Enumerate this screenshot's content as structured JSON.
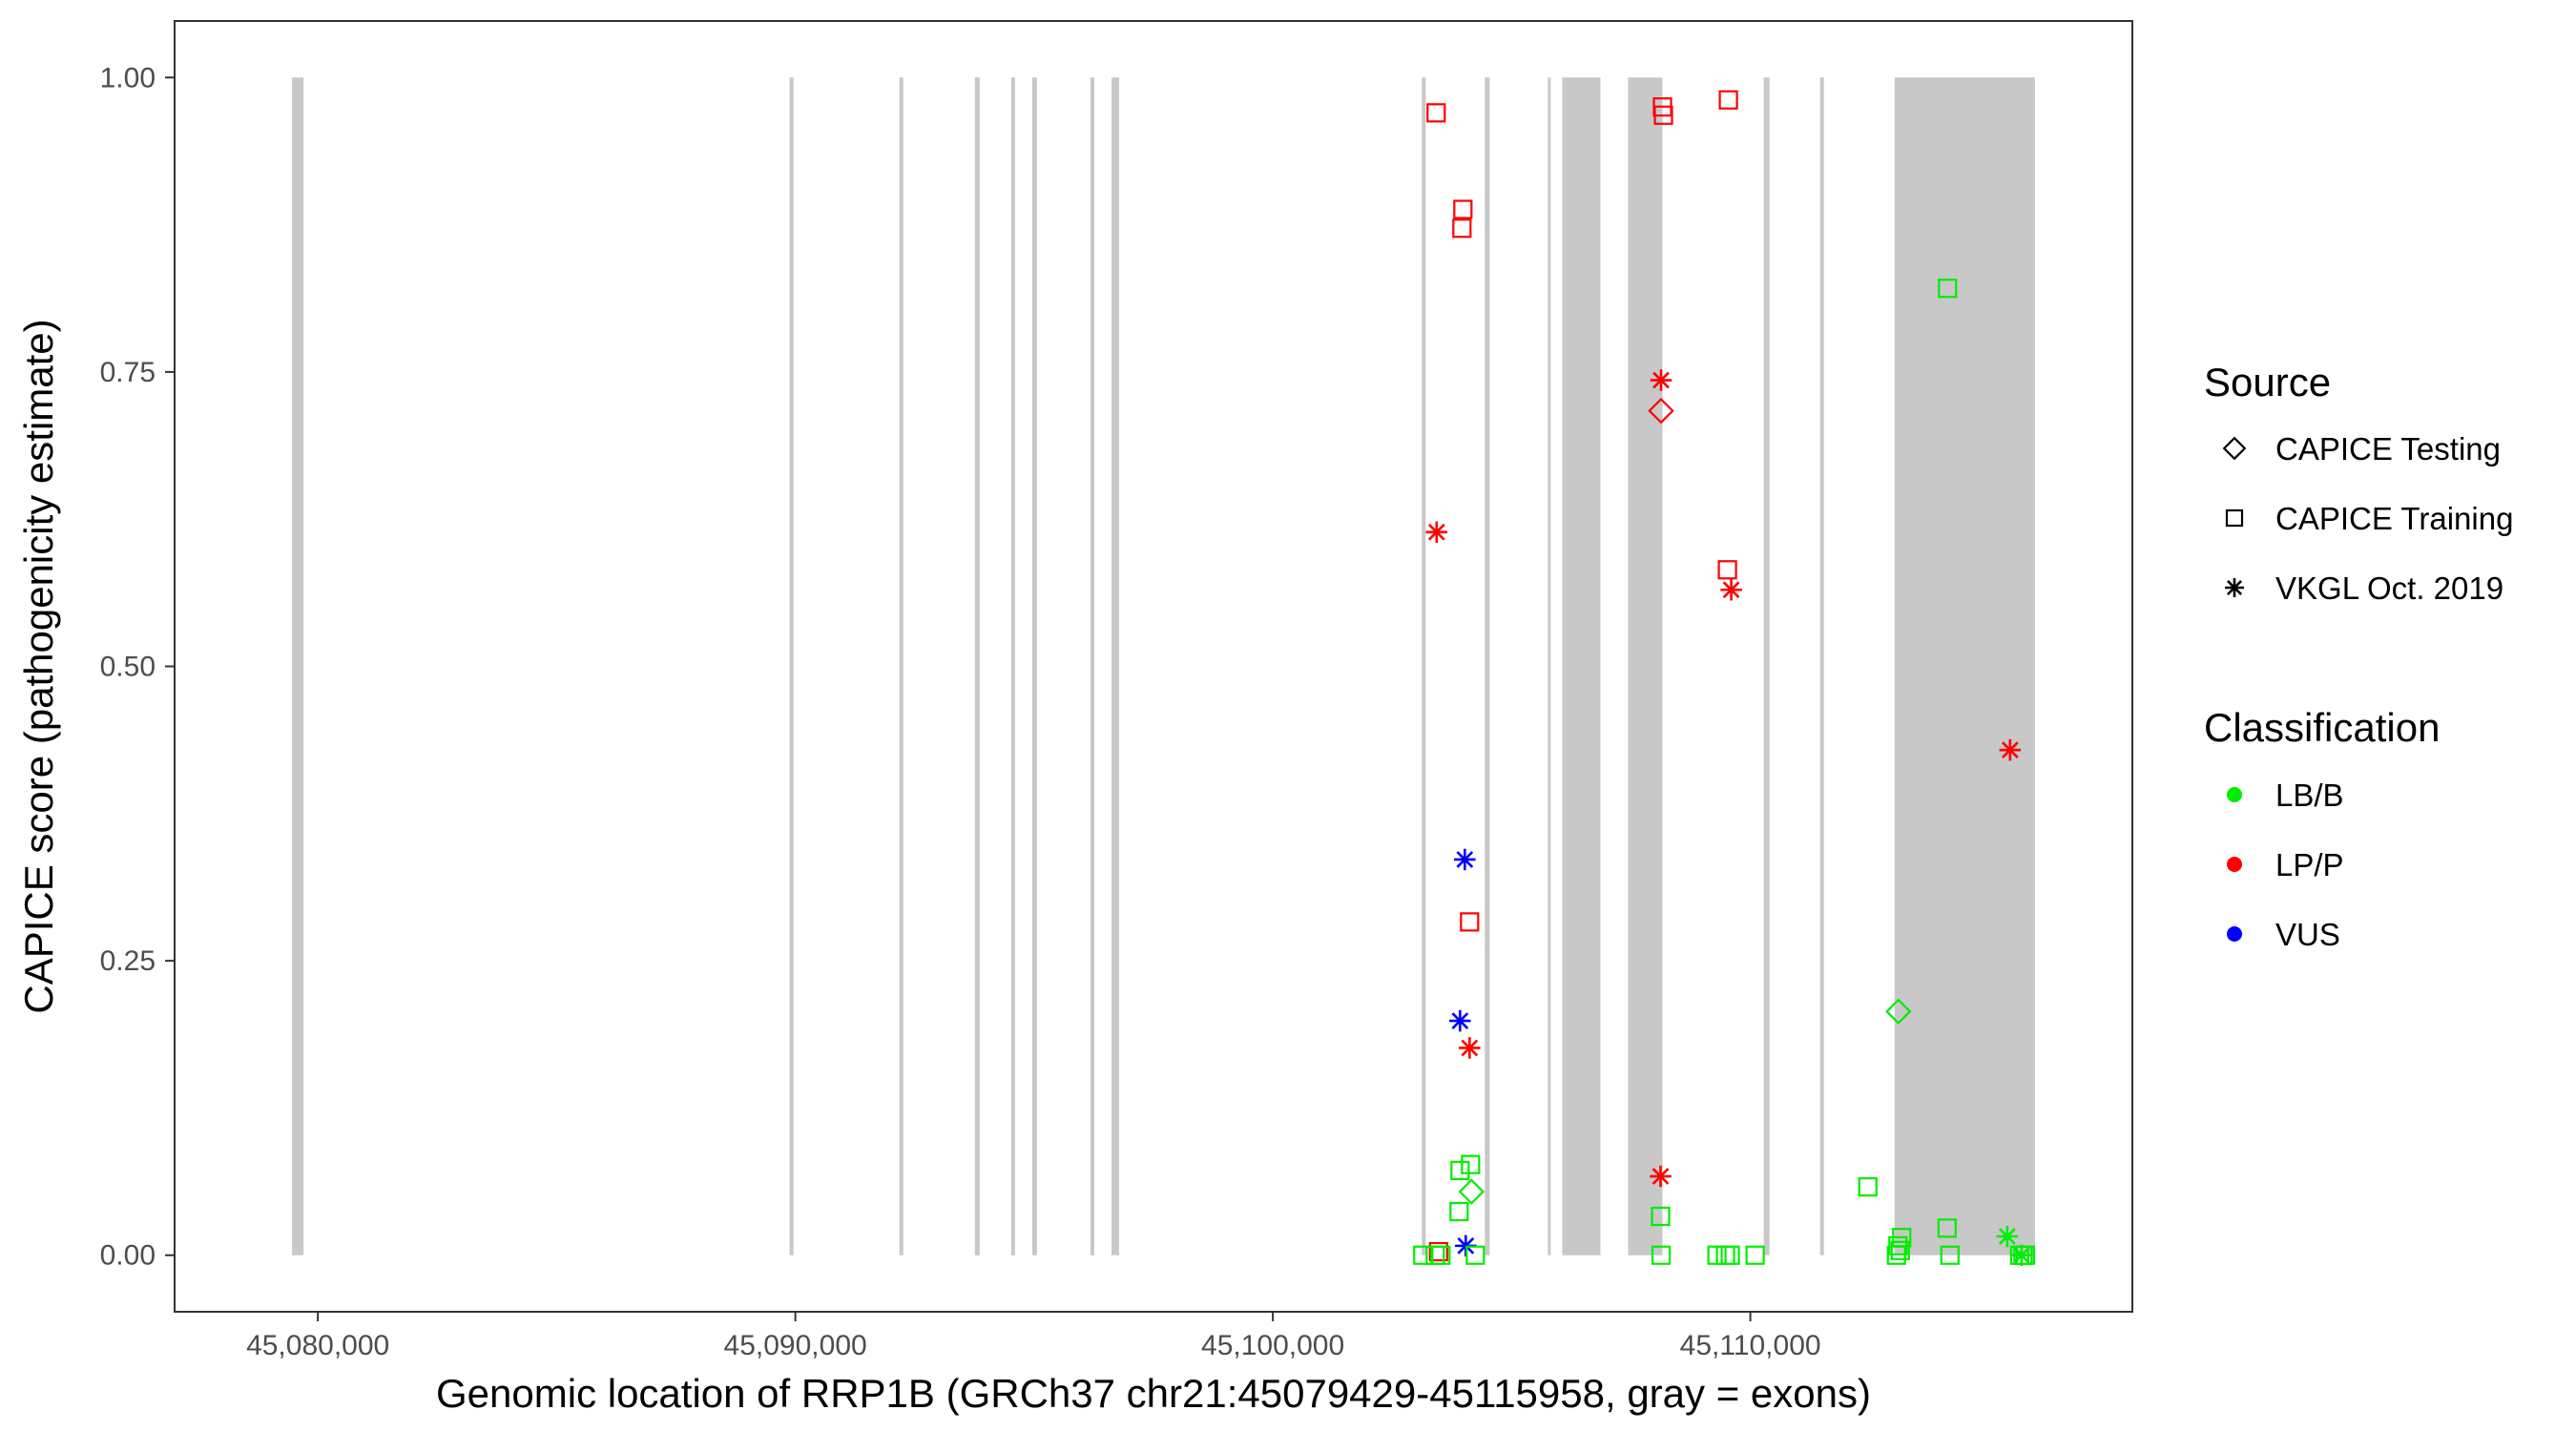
{
  "chart_data": {
    "type": "scatter",
    "xlabel": "Genomic location of RRP1B (GRCh37 chr21:45079429-45115958, gray = exons)",
    "ylabel": "CAPICE score (pathogenicity estimate)",
    "xlim": [
      45077000,
      45118000
    ],
    "ylim": [
      -0.048,
      1.048
    ],
    "x_ticks": [
      45080000,
      45090000,
      45100000,
      45110000
    ],
    "x_tick_labels": [
      "45,080,000",
      "45,090,000",
      "45,100,000",
      "45,110,000"
    ],
    "y_ticks": [
      0,
      0.25,
      0.5,
      0.75,
      1.0
    ],
    "y_tick_labels": [
      "0.00",
      "0.25",
      "0.50",
      "0.75",
      "1.00"
    ],
    "grid": false,
    "exons": [
      [
        45079460,
        45079700
      ],
      [
        45089880,
        45089960
      ],
      [
        45092180,
        45092260
      ],
      [
        45093760,
        45093860
      ],
      [
        45094520,
        45094600
      ],
      [
        45094960,
        45095060
      ],
      [
        45096180,
        45096260
      ],
      [
        45096620,
        45096780
      ],
      [
        45103120,
        45103200
      ],
      [
        45104440,
        45104540
      ],
      [
        45105760,
        45105820
      ],
      [
        45106060,
        45106860
      ],
      [
        45107440,
        45108160
      ],
      [
        45110280,
        45110400
      ],
      [
        45111460,
        45111540
      ],
      [
        45113020,
        45115960
      ]
    ],
    "exon_color": "#c8c8c8",
    "legend": {
      "placement": "right",
      "source": {
        "title": "Source",
        "items": [
          {
            "label": "CAPICE Testing",
            "shape": "diamond"
          },
          {
            "label": "CAPICE Training",
            "shape": "square"
          },
          {
            "label": "VKGL Oct. 2019",
            "shape": "asterisk"
          }
        ]
      },
      "classification": {
        "title": "Classification",
        "items": [
          {
            "label": "LB/B",
            "color": "#00ee00"
          },
          {
            "label": "LP/P",
            "color": "#ff0000"
          },
          {
            "label": "VUS",
            "color": "#0000ff"
          }
        ]
      }
    },
    "series": [
      {
        "source": "CAPICE Training",
        "classification": "LP/P",
        "points": [
          [
            45103420,
            0.97
          ],
          [
            45103980,
            0.888
          ],
          [
            45103960,
            0.872
          ],
          [
            45108160,
            0.975
          ],
          [
            45108180,
            0.968
          ],
          [
            45109540,
            0.981
          ],
          [
            45109520,
            0.582
          ],
          [
            45104120,
            0.283
          ],
          [
            45103470,
            0.003
          ]
        ]
      },
      {
        "source": "VKGL Oct. 2019",
        "classification": "LP/P",
        "points": [
          [
            45103430,
            0.614
          ],
          [
            45108130,
            0.743
          ],
          [
            45109600,
            0.565
          ],
          [
            45104120,
            0.176
          ],
          [
            45108120,
            0.067
          ],
          [
            45115440,
            0.429
          ]
        ]
      },
      {
        "source": "CAPICE Testing",
        "classification": "LP/P",
        "points": [
          [
            45108130,
            0.717
          ]
        ]
      },
      {
        "source": "VKGL Oct. 2019",
        "classification": "VUS",
        "points": [
          [
            45104020,
            0.336
          ],
          [
            45103920,
            0.199
          ],
          [
            45104040,
            0.008
          ]
        ]
      },
      {
        "source": "CAPICE Training",
        "classification": "LB/B",
        "points": [
          [
            45114130,
            0.821
          ],
          [
            45104140,
            0.077
          ],
          [
            45103920,
            0.072
          ],
          [
            45103900,
            0.037
          ],
          [
            45108120,
            0.033
          ],
          [
            45112460,
            0.058
          ],
          [
            45113170,
            0.015
          ],
          [
            45114120,
            0.023
          ],
          [
            45113090,
            0.008
          ],
          [
            45113140,
            0.004
          ],
          [
            45103140,
            0.0
          ],
          [
            45103400,
            0.0
          ],
          [
            45103520,
            0.0
          ],
          [
            45104240,
            0.0
          ],
          [
            45108130,
            0.0
          ],
          [
            45109300,
            0.0
          ],
          [
            45109480,
            0.0
          ],
          [
            45109580,
            0.0
          ],
          [
            45110100,
            0.0
          ],
          [
            45113060,
            0.0
          ],
          [
            45114180,
            0.0
          ],
          [
            45115640,
            0.0
          ],
          [
            45115710,
            0.0
          ],
          [
            45115760,
            0.0
          ]
        ]
      },
      {
        "source": "CAPICE Testing",
        "classification": "LB/B",
        "points": [
          [
            45104160,
            0.054
          ],
          [
            45113100,
            0.207
          ]
        ]
      },
      {
        "source": "VKGL Oct. 2019",
        "classification": "LB/B",
        "points": [
          [
            45115380,
            0.016
          ],
          [
            45115680,
            0.0
          ]
        ]
      }
    ]
  }
}
